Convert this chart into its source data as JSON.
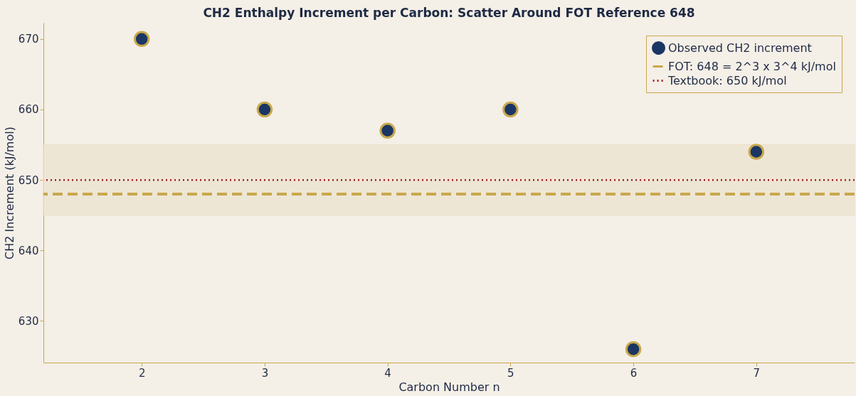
{
  "chart_data": {
    "type": "scatter",
    "title": "CH2 Enthalpy Increment per Carbon: Scatter Around FOT Reference 648",
    "xlabel": "Carbon Number n",
    "ylabel": "CH2 Increment (kJ/mol)",
    "x": [
      2,
      3,
      4,
      5,
      6,
      7
    ],
    "series": [
      {
        "name": "Observed CH2 increment",
        "color": "#1b3664",
        "values": [
          670,
          660,
          657,
          660,
          626,
          654
        ]
      }
    ],
    "ref_lines": [
      {
        "axis": "y",
        "value": 648,
        "label": "FOT: 648 = 2^3 x 3^4 kJ/mol",
        "color": "#c9a84c",
        "line_style": "dashed"
      },
      {
        "axis": "y",
        "value": 650,
        "label": "Textbook: 650 kJ/mol",
        "color": "#a31f24",
        "line_style": "dotted"
      }
    ],
    "bands": [
      {
        "axis": "y",
        "from": 645,
        "to": 655,
        "color": "#ede4d1"
      }
    ],
    "xlim": [
      1.2,
      7.8
    ],
    "ylim": [
      624.1,
      672.3
    ],
    "xticks": [
      2,
      3,
      4,
      5,
      6,
      7
    ],
    "yticks": [
      630,
      640,
      650,
      660,
      670
    ],
    "grid": false,
    "legend": "top right",
    "marker": "circle"
  }
}
